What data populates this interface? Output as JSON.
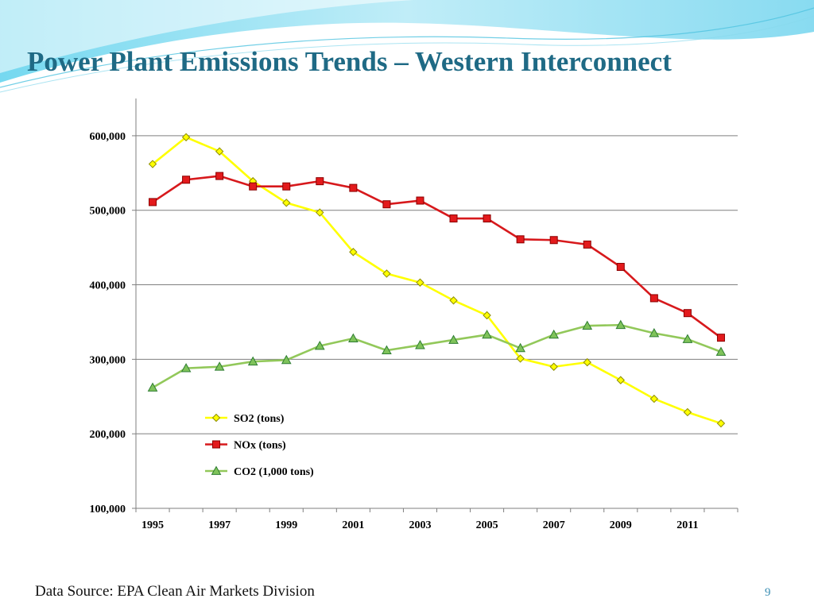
{
  "slide": {
    "title": "Power Plant Emissions Trends – Western Interconnect",
    "source": "Data Source: EPA Clean Air Markets Division",
    "page_number": "9"
  },
  "chart_data": {
    "type": "line",
    "x": [
      1995,
      1996,
      1997,
      1998,
      1999,
      2000,
      2001,
      2002,
      2003,
      2004,
      2005,
      2006,
      2007,
      2008,
      2009,
      2010,
      2011,
      2012
    ],
    "x_tick_labels": [
      "1995",
      "1997",
      "1999",
      "2001",
      "2003",
      "2005",
      "2007",
      "2009",
      "2011"
    ],
    "ylim": [
      100000,
      650000
    ],
    "y_ticks": [
      100000,
      200000,
      300000,
      400000,
      500000,
      600000
    ],
    "y_tick_labels": [
      "100,000",
      "200,000",
      "300,000",
      "400,000",
      "500,000",
      "600,000"
    ],
    "grid": true,
    "legend_position": "inside-bottom-center",
    "series": [
      {
        "name": "SO2 (tons)",
        "color": "#ffff00",
        "marker": "diamond",
        "marker_fill": "#ffff00",
        "marker_stroke": "#8c8c00",
        "values": [
          562000,
          598000,
          579000,
          539000,
          510000,
          497000,
          444000,
          415000,
          403000,
          379000,
          359000,
          301000,
          290000,
          296000,
          272000,
          247000,
          229000,
          214000
        ]
      },
      {
        "name": "NOx (tons)",
        "color": "#d7191c",
        "marker": "square",
        "marker_fill": "#e31a1c",
        "marker_stroke": "#8b0000",
        "values": [
          511000,
          541000,
          546000,
          532000,
          532000,
          539000,
          530000,
          508000,
          513000,
          489000,
          489000,
          461000,
          460000,
          454000,
          424000,
          382000,
          362000,
          329000
        ]
      },
      {
        "name": "CO2 (1,000 tons)",
        "color": "#92c85a",
        "marker": "triangle",
        "marker_fill": "#7fc35a",
        "marker_stroke": "#2e7d32",
        "values": [
          262000,
          288000,
          290000,
          297000,
          299000,
          318000,
          328000,
          312000,
          319000,
          326000,
          333000,
          315000,
          333000,
          345000,
          346000,
          335000,
          327000,
          310000
        ]
      }
    ]
  }
}
